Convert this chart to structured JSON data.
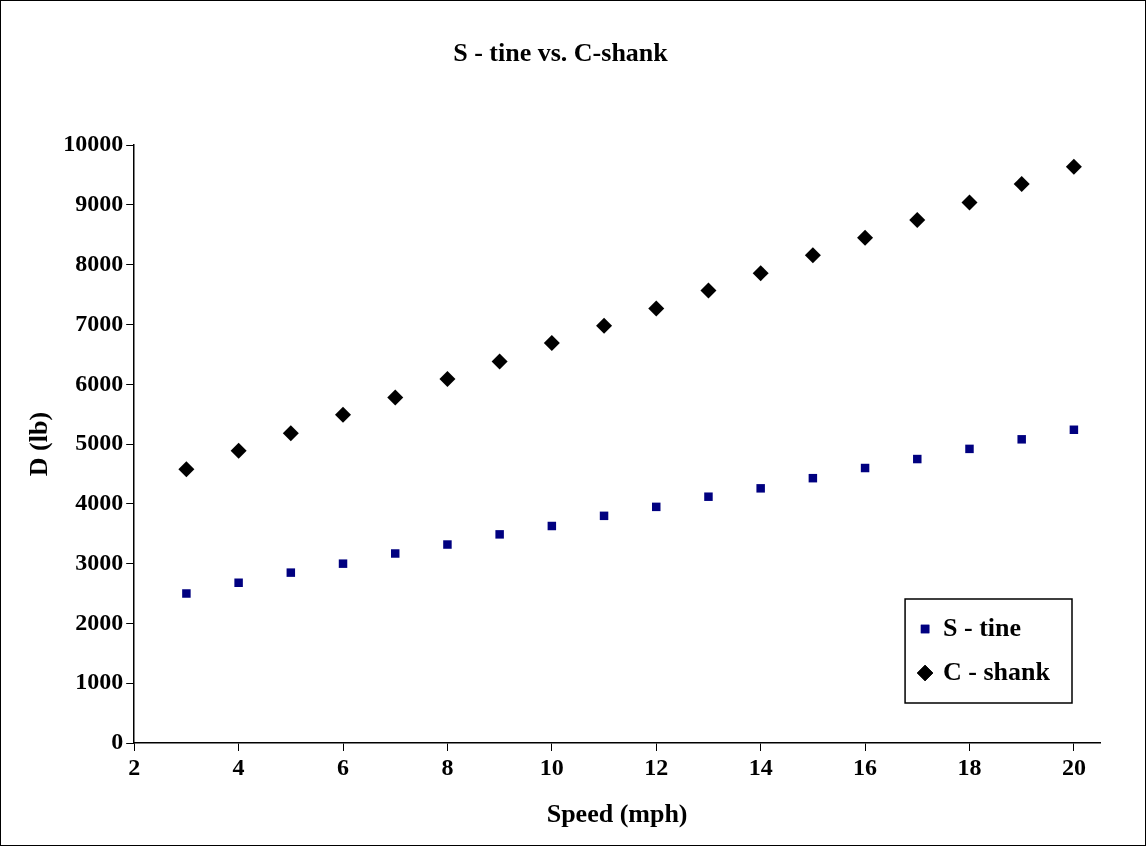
{
  "chart_data": {
    "type": "scatter",
    "title": "S - tine vs. C-shank",
    "xlabel": "Speed (mph)",
    "ylabel": "D (lb)",
    "x": [
      3,
      4,
      5,
      6,
      7,
      8,
      9,
      10,
      11,
      12,
      13,
      14,
      15,
      16,
      17,
      18,
      19,
      20
    ],
    "series": [
      {
        "name": "S - tine",
        "color": "#000080",
        "marker": "square",
        "values": [
          2500,
          2680,
          2850,
          3000,
          3170,
          3320,
          3490,
          3630,
          3800,
          3950,
          4120,
          4260,
          4430,
          4600,
          4750,
          4920,
          5080,
          5240
        ]
      },
      {
        "name": "C - shank",
        "color": "#000000",
        "marker": "diamond",
        "values": [
          4580,
          4890,
          5180,
          5490,
          5780,
          6090,
          6380,
          6690,
          6980,
          7270,
          7570,
          7860,
          8160,
          8450,
          8750,
          9040,
          9350,
          9640
        ]
      }
    ],
    "xlim": [
      2,
      20.5
    ],
    "xticks": [
      2,
      4,
      6,
      8,
      10,
      12,
      14,
      16,
      18,
      20
    ],
    "ylim": [
      0,
      10000
    ],
    "yticks": [
      0,
      1000,
      2000,
      3000,
      4000,
      5000,
      6000,
      7000,
      8000,
      9000,
      10000
    ],
    "grid": false,
    "legend": "bottom right"
  }
}
